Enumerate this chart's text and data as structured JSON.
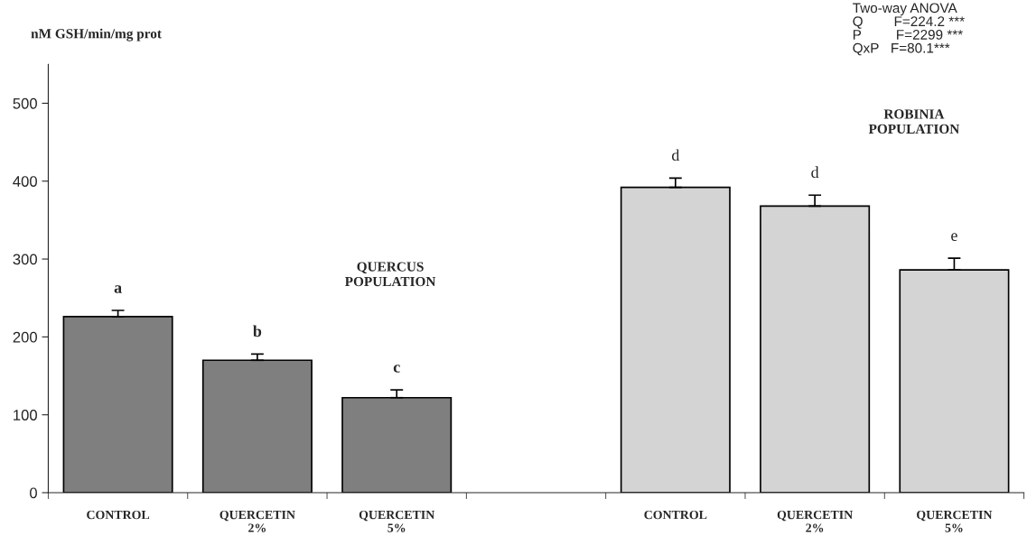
{
  "chart_data": {
    "type": "bar",
    "ylabel": "nM GSH/min/mg prot",
    "categories": [
      "CONTROL",
      "QUERCETIN\n2%",
      "QUERCETIN\n5%",
      null,
      "CONTROL",
      "QUERCETIN\n2%",
      "QUERCETIN\n5%"
    ],
    "values": [
      226,
      170,
      122,
      null,
      392,
      368,
      286
    ],
    "errors": [
      8,
      8,
      10,
      null,
      12,
      14,
      15
    ],
    "colors": [
      "#7f7f7f",
      "#7f7f7f",
      "#7f7f7f",
      null,
      "#d4d4d4",
      "#d4d4d4",
      "#d4d4d4"
    ],
    "value_labels": [
      "a",
      "b",
      "c",
      null,
      "d",
      "d",
      "e"
    ],
    "annotations": [
      "QUERCUS\nPOPULATION",
      "ROBINIA\nPOPULATION",
      "Two-way ANOVA\nQ        F=224.2 ***\nP         F=2299 ***\nQxP   F=80.1***"
    ],
    "ylim": [
      0,
      550
    ],
    "yticks": [
      0,
      100,
      200,
      300,
      400,
      500
    ],
    "grid": false,
    "legend": false
  }
}
